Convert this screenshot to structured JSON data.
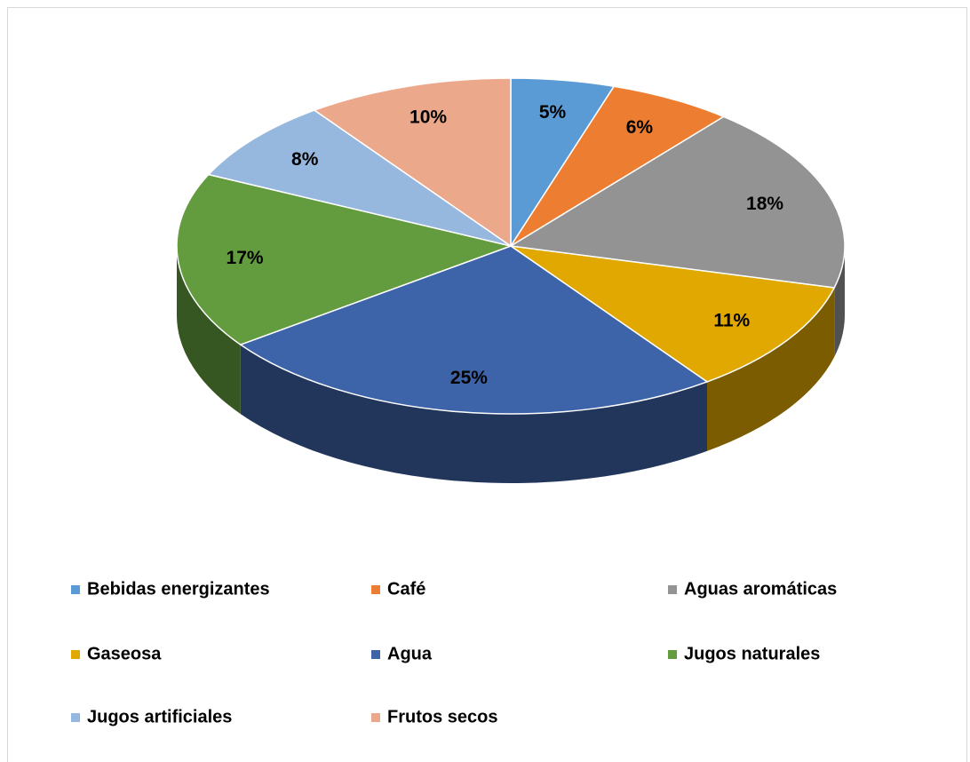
{
  "chart_data": {
    "type": "pie3d",
    "categories": [
      "Bebidas energizantes",
      "Café",
      "Aguas aromáticas",
      "Gaseosa",
      "Agua",
      "Jugos naturales",
      "Jugos artificiales",
      "Frutos secos"
    ],
    "values": [
      5,
      6,
      18,
      11,
      25,
      17,
      8,
      10
    ],
    "value_labels": [
      "5%",
      "6%",
      "18%",
      "11%",
      "25%",
      "17%",
      "8%",
      "10%"
    ],
    "colors": [
      "#5b9bd5",
      "#ed7d31",
      "#939393",
      "#e0a800",
      "#3d63a8",
      "#629c3e",
      "#97b8de",
      "#eca88a"
    ],
    "legend": "bottom"
  }
}
